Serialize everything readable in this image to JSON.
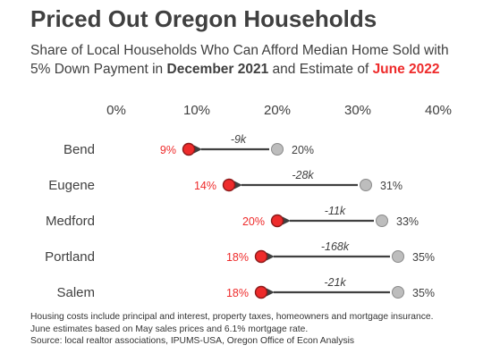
{
  "header": {
    "title": "Priced Out Oregon Households",
    "subtitle_line1": "Share of Local Households Who Can Afford Median Home Sold with",
    "subtitle_line2_pre": "5% Down Payment in ",
    "subtitle_line2_date1": "December 2021",
    "subtitle_line2_mid": " and Estimate of ",
    "subtitle_line2_date2": "June 2022"
  },
  "colors": {
    "june_2022": "#ee2b2b",
    "december_2021": "#bdbdbd",
    "arrow": "#404040",
    "text": "#404040"
  },
  "chart_data": {
    "type": "dumbbell",
    "title": "Priced Out Oregon Households",
    "xlim": [
      0,
      40
    ],
    "x_ticks": [
      "0%",
      "10%",
      "20%",
      "30%",
      "40%"
    ],
    "x_tick_values": [
      0,
      10,
      20,
      30,
      40
    ],
    "unit": "%",
    "categories": [
      "Bend",
      "Eugene",
      "Medford",
      "Portland",
      "Salem"
    ],
    "series": [
      {
        "name": "December 2021",
        "values": [
          20,
          31,
          33,
          35,
          35
        ]
      },
      {
        "name": "June 2022",
        "values": [
          9,
          14,
          20,
          18,
          18
        ]
      }
    ],
    "point_labels_dec": [
      "20%",
      "31%",
      "33%",
      "35%",
      "35%"
    ],
    "point_labels_jun": [
      "9%",
      "14%",
      "20%",
      "18%",
      "18%"
    ],
    "change_labels": [
      "-9k",
      "-28k",
      "-11k",
      "-168k",
      "-21k"
    ]
  },
  "footnote": {
    "line1": "Housing costs  include principal and interest, property taxes, homeowners and mortgage insurance.",
    "line2": "June estimates based on May sales prices and 6.1% mortgage rate.",
    "line3": "Source: local realtor associations, IPUMS-USA, Oregon Office of Econ Analysis"
  }
}
